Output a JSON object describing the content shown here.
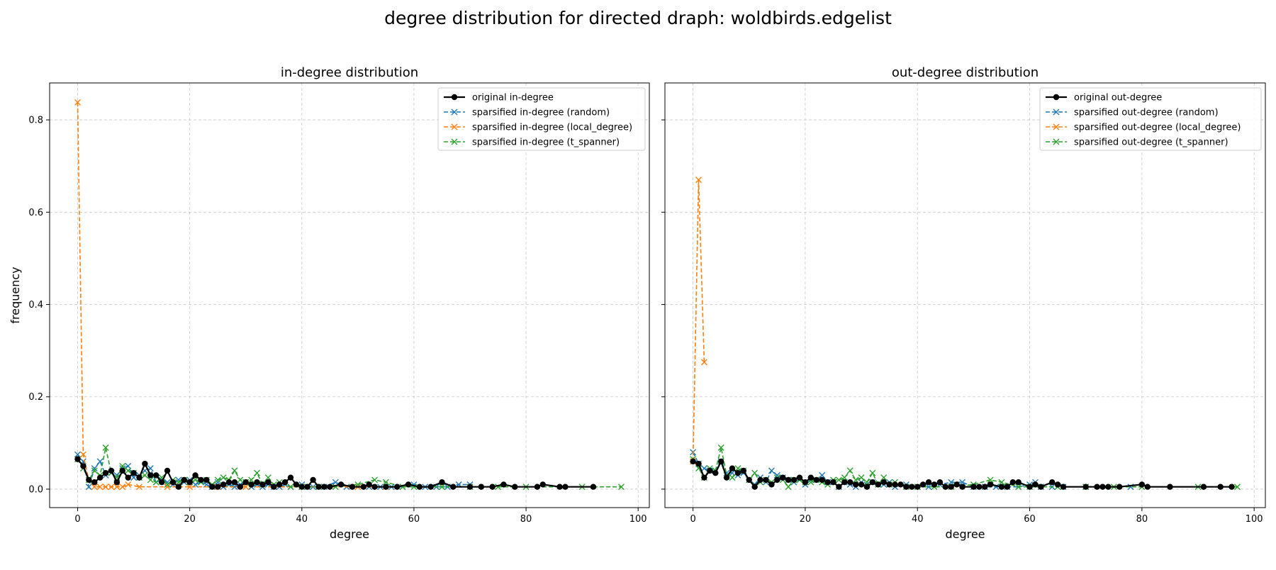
{
  "figure": {
    "title": "degree distribution for directed draph: woldbirds.edgelist"
  },
  "chart_data": [
    {
      "type": "line",
      "title": "in-degree distribution",
      "xlabel": "degree",
      "ylabel": "frequency",
      "xlim": [
        -5,
        102
      ],
      "ylim": [
        -0.04,
        0.88
      ],
      "xticks": [
        0,
        20,
        40,
        60,
        80,
        100
      ],
      "yticks": [
        0.0,
        0.2,
        0.4,
        0.6,
        0.8
      ],
      "grid": true,
      "legend_position": "top-right",
      "series": [
        {
          "name": "sparsified in-degree (random)",
          "color": "#1f77b4",
          "style": "dashed",
          "marker": "x",
          "x": [
            0,
            1,
            2,
            3,
            4,
            5,
            6,
            7,
            8,
            9,
            10,
            11,
            12,
            13,
            14,
            15,
            16,
            17,
            18,
            19,
            20,
            21,
            22,
            23,
            24,
            25,
            26,
            27,
            28,
            29,
            30,
            31,
            32,
            33,
            34,
            35,
            36,
            37,
            38,
            40,
            41,
            42,
            44,
            46,
            48,
            50,
            52,
            54,
            56,
            58,
            60,
            62,
            64,
            66,
            68,
            70
          ],
          "y": [
            0.075,
            0.06,
            0.005,
            0.045,
            0.06,
            0.03,
            0.035,
            0.03,
            0.045,
            0.05,
            0.025,
            0.03,
            0.04,
            0.045,
            0.015,
            0.02,
            0.015,
            0.01,
            0.02,
            0.015,
            0.02,
            0.01,
            0.015,
            0.01,
            0.005,
            0.015,
            0.005,
            0.01,
            0.005,
            0.01,
            0.015,
            0.005,
            0.01,
            0.005,
            0.01,
            0.005,
            0.005,
            0.01,
            0.005,
            0.01,
            0.005,
            0.005,
            0.005,
            0.015,
            0.005,
            0.005,
            0.005,
            0.005,
            0.005,
            0.005,
            0.01,
            0.005,
            0.005,
            0.005,
            0.01,
            0.01
          ]
        },
        {
          "name": "sparsified in-degree (local_degree)",
          "color": "#ff7f0e",
          "style": "dashed",
          "marker": "x",
          "x": [
            0,
            1,
            2,
            3,
            4,
            5,
            6,
            7,
            8,
            9,
            11,
            16,
            20,
            25,
            30,
            40,
            50,
            55
          ],
          "y": [
            0.838,
            0.075,
            0.02,
            0.005,
            0.005,
            0.005,
            0.005,
            0.005,
            0.005,
            0.01,
            0.005,
            0.005,
            0.005,
            0.005,
            0.005,
            0.005,
            0.005,
            0.005
          ]
        },
        {
          "name": "sparsified in-degree (t_spanner)",
          "color": "#2ca02c",
          "style": "dashed",
          "marker": "x",
          "x": [
            0,
            1,
            2,
            3,
            4,
            5,
            6,
            7,
            8,
            9,
            10,
            11,
            12,
            13,
            14,
            15,
            16,
            17,
            18,
            19,
            20,
            21,
            22,
            23,
            24,
            25,
            26,
            27,
            28,
            29,
            30,
            31,
            32,
            33,
            34,
            35,
            36,
            38,
            40,
            43,
            46,
            50,
            53,
            55,
            58,
            60,
            65,
            70,
            75,
            80,
            90,
            97
          ],
          "y": [
            0.065,
            0.045,
            0.02,
            0.04,
            0.03,
            0.09,
            0.035,
            0.025,
            0.05,
            0.04,
            0.035,
            0.025,
            0.03,
            0.02,
            0.015,
            0.025,
            0.01,
            0.02,
            0.015,
            0.02,
            0.015,
            0.02,
            0.015,
            0.02,
            0.01,
            0.02,
            0.025,
            0.02,
            0.04,
            0.02,
            0.015,
            0.02,
            0.035,
            0.01,
            0.025,
            0.01,
            0.015,
            0.005,
            0.005,
            0.005,
            0.005,
            0.01,
            0.02,
            0.015,
            0.005,
            0.005,
            0.005,
            0.005,
            0.005,
            0.005,
            0.005,
            0.005
          ]
        },
        {
          "name": "original in-degree",
          "color": "#000000",
          "style": "solid",
          "marker": "o",
          "x": [
            0,
            1,
            2,
            3,
            4,
            5,
            6,
            7,
            8,
            9,
            10,
            11,
            12,
            13,
            14,
            15,
            16,
            17,
            18,
            19,
            20,
            21,
            22,
            23,
            24,
            25,
            26,
            27,
            28,
            29,
            30,
            31,
            32,
            33,
            34,
            35,
            36,
            37,
            38,
            39,
            40,
            41,
            42,
            43,
            44,
            45,
            47,
            49,
            51,
            52,
            53,
            55,
            57,
            59,
            61,
            63,
            65,
            67,
            70,
            72,
            74,
            76,
            78,
            82,
            83,
            86,
            87,
            92
          ],
          "y": [
            0.065,
            0.05,
            0.02,
            0.015,
            0.025,
            0.035,
            0.04,
            0.015,
            0.04,
            0.025,
            0.035,
            0.025,
            0.055,
            0.03,
            0.03,
            0.015,
            0.04,
            0.015,
            0.005,
            0.02,
            0.015,
            0.03,
            0.02,
            0.02,
            0.005,
            0.005,
            0.01,
            0.015,
            0.015,
            0.005,
            0.015,
            0.01,
            0.015,
            0.01,
            0.015,
            0.005,
            0.01,
            0.015,
            0.025,
            0.01,
            0.005,
            0.005,
            0.02,
            0.005,
            0.005,
            0.005,
            0.01,
            0.005,
            0.005,
            0.01,
            0.005,
            0.005,
            0.005,
            0.01,
            0.005,
            0.005,
            0.015,
            0.005,
            0.005,
            0.005,
            0.005,
            0.01,
            0.005,
            0.005,
            0.01,
            0.005,
            0.005,
            0.005
          ]
        }
      ],
      "legend": [
        {
          "name": "original in-degree",
          "color": "#000000",
          "style": "solid",
          "marker": "o"
        },
        {
          "name": "sparsified in-degree (random)",
          "color": "#1f77b4",
          "style": "dashed",
          "marker": "x"
        },
        {
          "name": "sparsified in-degree (local_degree)",
          "color": "#ff7f0e",
          "style": "dashed",
          "marker": "x"
        },
        {
          "name": "sparsified in-degree (t_spanner)",
          "color": "#2ca02c",
          "style": "dashed",
          "marker": "x"
        }
      ]
    },
    {
      "type": "line",
      "title": "out-degree distribution",
      "xlabel": "degree",
      "ylabel": "",
      "xlim": [
        -5,
        102
      ],
      "ylim": [
        -0.04,
        0.88
      ],
      "xticks": [
        0,
        20,
        40,
        60,
        80,
        100
      ],
      "yticks": [
        0.0,
        0.2,
        0.4,
        0.6,
        0.8
      ],
      "grid": true,
      "legend_position": "top-right",
      "series": [
        {
          "name": "sparsified out-degree (random)",
          "color": "#1f77b4",
          "style": "dashed",
          "marker": "x",
          "x": [
            0,
            1,
            2,
            3,
            4,
            5,
            6,
            7,
            8,
            9,
            10,
            11,
            12,
            13,
            14,
            15,
            16,
            17,
            18,
            19,
            20,
            21,
            22,
            23,
            24,
            25,
            26,
            27,
            28,
            29,
            30,
            31,
            32,
            33,
            34,
            35,
            36,
            38,
            40,
            42,
            44,
            46,
            48,
            50,
            52,
            54,
            56,
            58,
            60,
            61,
            62,
            64,
            66,
            70,
            78
          ],
          "y": [
            0.08,
            0.055,
            0.045,
            0.04,
            0.04,
            0.06,
            0.035,
            0.035,
            0.03,
            0.035,
            0.02,
            0.01,
            0.025,
            0.015,
            0.04,
            0.03,
            0.025,
            0.02,
            0.015,
            0.02,
            0.01,
            0.02,
            0.02,
            0.03,
            0.015,
            0.015,
            0.005,
            0.015,
            0.01,
            0.005,
            0.015,
            0.01,
            0.015,
            0.01,
            0.01,
            0.015,
            0.005,
            0.01,
            0.005,
            0.005,
            0.01,
            0.015,
            0.015,
            0.005,
            0.005,
            0.005,
            0.005,
            0.005,
            0.01,
            0.015,
            0.005,
            0.005,
            0.005,
            0.005,
            0.005
          ]
        },
        {
          "name": "sparsified out-degree (local_degree)",
          "color": "#ff7f0e",
          "style": "dashed",
          "marker": "x",
          "x": [
            0,
            1,
            2
          ],
          "y": [
            0.06,
            0.67,
            0.275
          ]
        },
        {
          "name": "sparsified out-degree (t_spanner)",
          "color": "#2ca02c",
          "style": "dashed",
          "marker": "x",
          "x": [
            0,
            1,
            2,
            3,
            4,
            5,
            6,
            7,
            8,
            9,
            10,
            11,
            12,
            13,
            14,
            15,
            16,
            17,
            18,
            19,
            20,
            21,
            22,
            23,
            24,
            25,
            26,
            27,
            28,
            29,
            30,
            31,
            32,
            33,
            34,
            35,
            36,
            38,
            40,
            43,
            46,
            50,
            53,
            55,
            58,
            60,
            65,
            70,
            75,
            80,
            90,
            97
          ],
          "y": [
            0.065,
            0.045,
            0.025,
            0.045,
            0.04,
            0.09,
            0.03,
            0.025,
            0.045,
            0.04,
            0.02,
            0.035,
            0.015,
            0.02,
            0.015,
            0.025,
            0.02,
            0.005,
            0.02,
            0.02,
            0.015,
            0.015,
            0.02,
            0.015,
            0.01,
            0.02,
            0.02,
            0.025,
            0.04,
            0.02,
            0.025,
            0.015,
            0.035,
            0.01,
            0.025,
            0.01,
            0.015,
            0.005,
            0.005,
            0.005,
            0.005,
            0.01,
            0.02,
            0.015,
            0.005,
            0.005,
            0.005,
            0.005,
            0.005,
            0.005,
            0.005,
            0.005
          ]
        },
        {
          "name": "original out-degree",
          "color": "#000000",
          "style": "solid",
          "marker": "o",
          "x": [
            0,
            1,
            2,
            3,
            4,
            5,
            6,
            7,
            8,
            9,
            10,
            11,
            12,
            13,
            14,
            15,
            16,
            17,
            18,
            19,
            20,
            21,
            22,
            23,
            24,
            25,
            26,
            27,
            28,
            29,
            30,
            31,
            32,
            33,
            34,
            35,
            36,
            37,
            38,
            39,
            40,
            41,
            42,
            43,
            44,
            45,
            46,
            47,
            48,
            50,
            51,
            52,
            53,
            55,
            56,
            57,
            58,
            60,
            61,
            62,
            64,
            65,
            66,
            70,
            72,
            73,
            74,
            76,
            80,
            81,
            85,
            91,
            94,
            96
          ],
          "y": [
            0.06,
            0.055,
            0.025,
            0.04,
            0.035,
            0.06,
            0.025,
            0.045,
            0.035,
            0.04,
            0.02,
            0.005,
            0.02,
            0.02,
            0.01,
            0.02,
            0.025,
            0.02,
            0.02,
            0.025,
            0.015,
            0.025,
            0.02,
            0.02,
            0.015,
            0.015,
            0.005,
            0.015,
            0.015,
            0.01,
            0.01,
            0.005,
            0.015,
            0.01,
            0.015,
            0.01,
            0.01,
            0.01,
            0.005,
            0.005,
            0.005,
            0.01,
            0.015,
            0.01,
            0.015,
            0.005,
            0.005,
            0.01,
            0.005,
            0.005,
            0.005,
            0.005,
            0.01,
            0.005,
            0.005,
            0.015,
            0.015,
            0.005,
            0.01,
            0.005,
            0.015,
            0.01,
            0.005,
            0.005,
            0.005,
            0.005,
            0.005,
            0.005,
            0.01,
            0.005,
            0.005,
            0.005,
            0.005,
            0.005
          ]
        }
      ],
      "legend": [
        {
          "name": "original out-degree",
          "color": "#000000",
          "style": "solid",
          "marker": "o"
        },
        {
          "name": "sparsified out-degree (random)",
          "color": "#1f77b4",
          "style": "dashed",
          "marker": "x"
        },
        {
          "name": "sparsified out-degree (local_degree)",
          "color": "#ff7f0e",
          "style": "dashed",
          "marker": "x"
        },
        {
          "name": "sparsified out-degree (t_spanner)",
          "color": "#2ca02c",
          "style": "dashed",
          "marker": "x"
        }
      ]
    }
  ]
}
